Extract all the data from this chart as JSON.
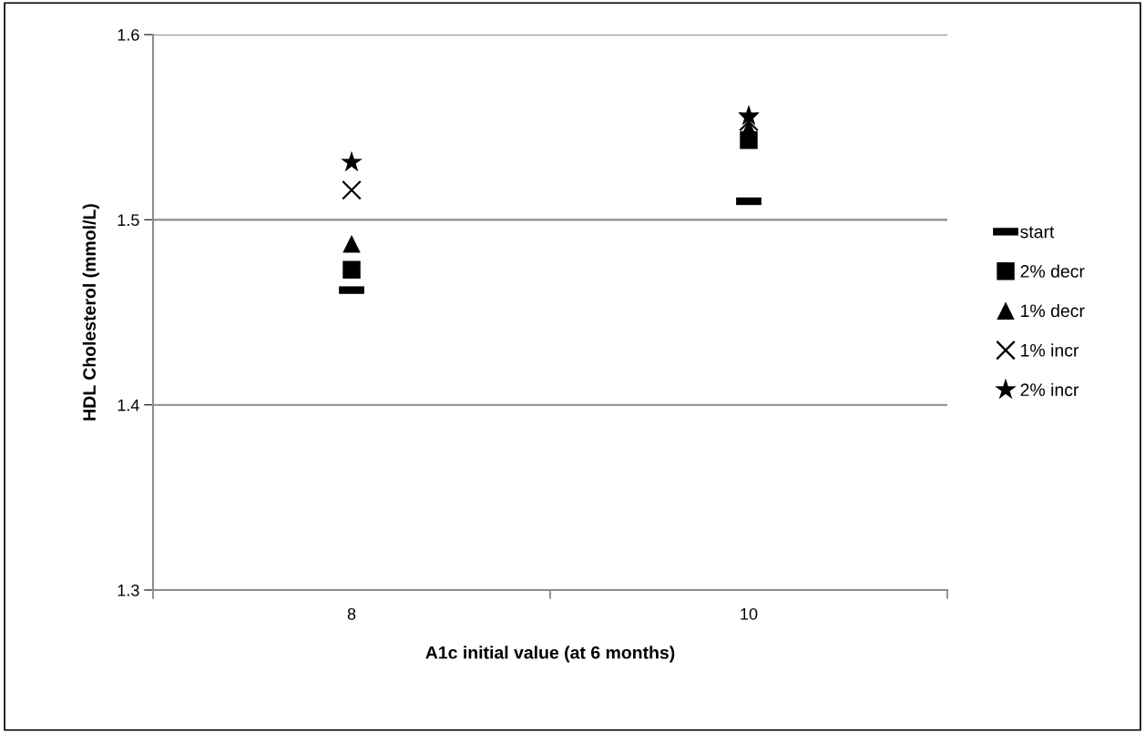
{
  "chart_data": {
    "type": "scatter",
    "xlabel": "A1c initial value (at 6 months)",
    "ylabel": "HDL Cholesterol (mmol/L)",
    "categories": [
      "8",
      "10"
    ],
    "series": [
      {
        "name": "start",
        "color": "#000000",
        "values": [
          1.462,
          1.51
        ]
      },
      {
        "name": "2% decr",
        "color": "#000000",
        "marker": "square",
        "values": [
          1.473,
          1.543
        ]
      },
      {
        "name": "1% decr",
        "color": "#000000",
        "marker": "triangle",
        "values": [
          1.487,
          1.549
        ]
      },
      {
        "name": "1% incr",
        "color": "#000000",
        "marker": "cross",
        "values": [
          1.516,
          1.553
        ]
      },
      {
        "name": "2% incr",
        "color": "#000000",
        "marker": "star",
        "values": [
          1.531,
          1.556
        ]
      }
    ],
    "ylim": [
      1.3,
      1.6
    ],
    "yticks": [
      1.3,
      1.4,
      1.5,
      1.6
    ],
    "grid": "y",
    "legend": "right"
  }
}
